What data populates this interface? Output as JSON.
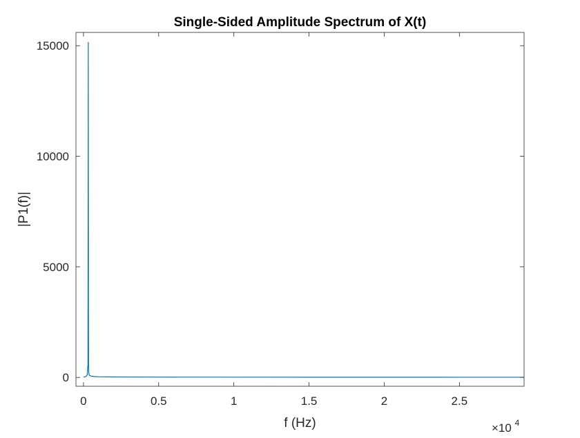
{
  "chart_data": {
    "type": "line",
    "title": "Single-Sided Amplitude Spectrum of X(t)",
    "xlabel": "f (Hz)",
    "ylabel": "|P1(f)|",
    "x_exponent_label": {
      "base": "×10",
      "exponent": "4"
    },
    "xlim": [
      -500,
      29300
    ],
    "ylim": [
      -400,
      15600
    ],
    "x_ticks": [
      {
        "value": 0,
        "label": "0"
      },
      {
        "value": 5000,
        "label": "0.5"
      },
      {
        "value": 10000,
        "label": "1"
      },
      {
        "value": 15000,
        "label": "1.5"
      },
      {
        "value": 20000,
        "label": "2"
      },
      {
        "value": 25000,
        "label": "2.5"
      }
    ],
    "y_ticks": [
      {
        "value": 0,
        "label": "0"
      },
      {
        "value": 5000,
        "label": "5000"
      },
      {
        "value": 10000,
        "label": "10000"
      },
      {
        "value": 15000,
        "label": "15000"
      }
    ],
    "grid": false,
    "series": [
      {
        "color": "#0072BD",
        "x": [
          0,
          150,
          250,
          300,
          320,
          330,
          340,
          360,
          400,
          500,
          700,
          1000,
          2000,
          5000,
          10000,
          15000,
          20000,
          25000,
          29300
        ],
        "y": [
          15,
          30,
          120,
          600,
          15150,
          3200,
          400,
          150,
          90,
          60,
          40,
          30,
          20,
          15,
          12,
          10,
          9,
          8,
          8
        ]
      }
    ]
  }
}
